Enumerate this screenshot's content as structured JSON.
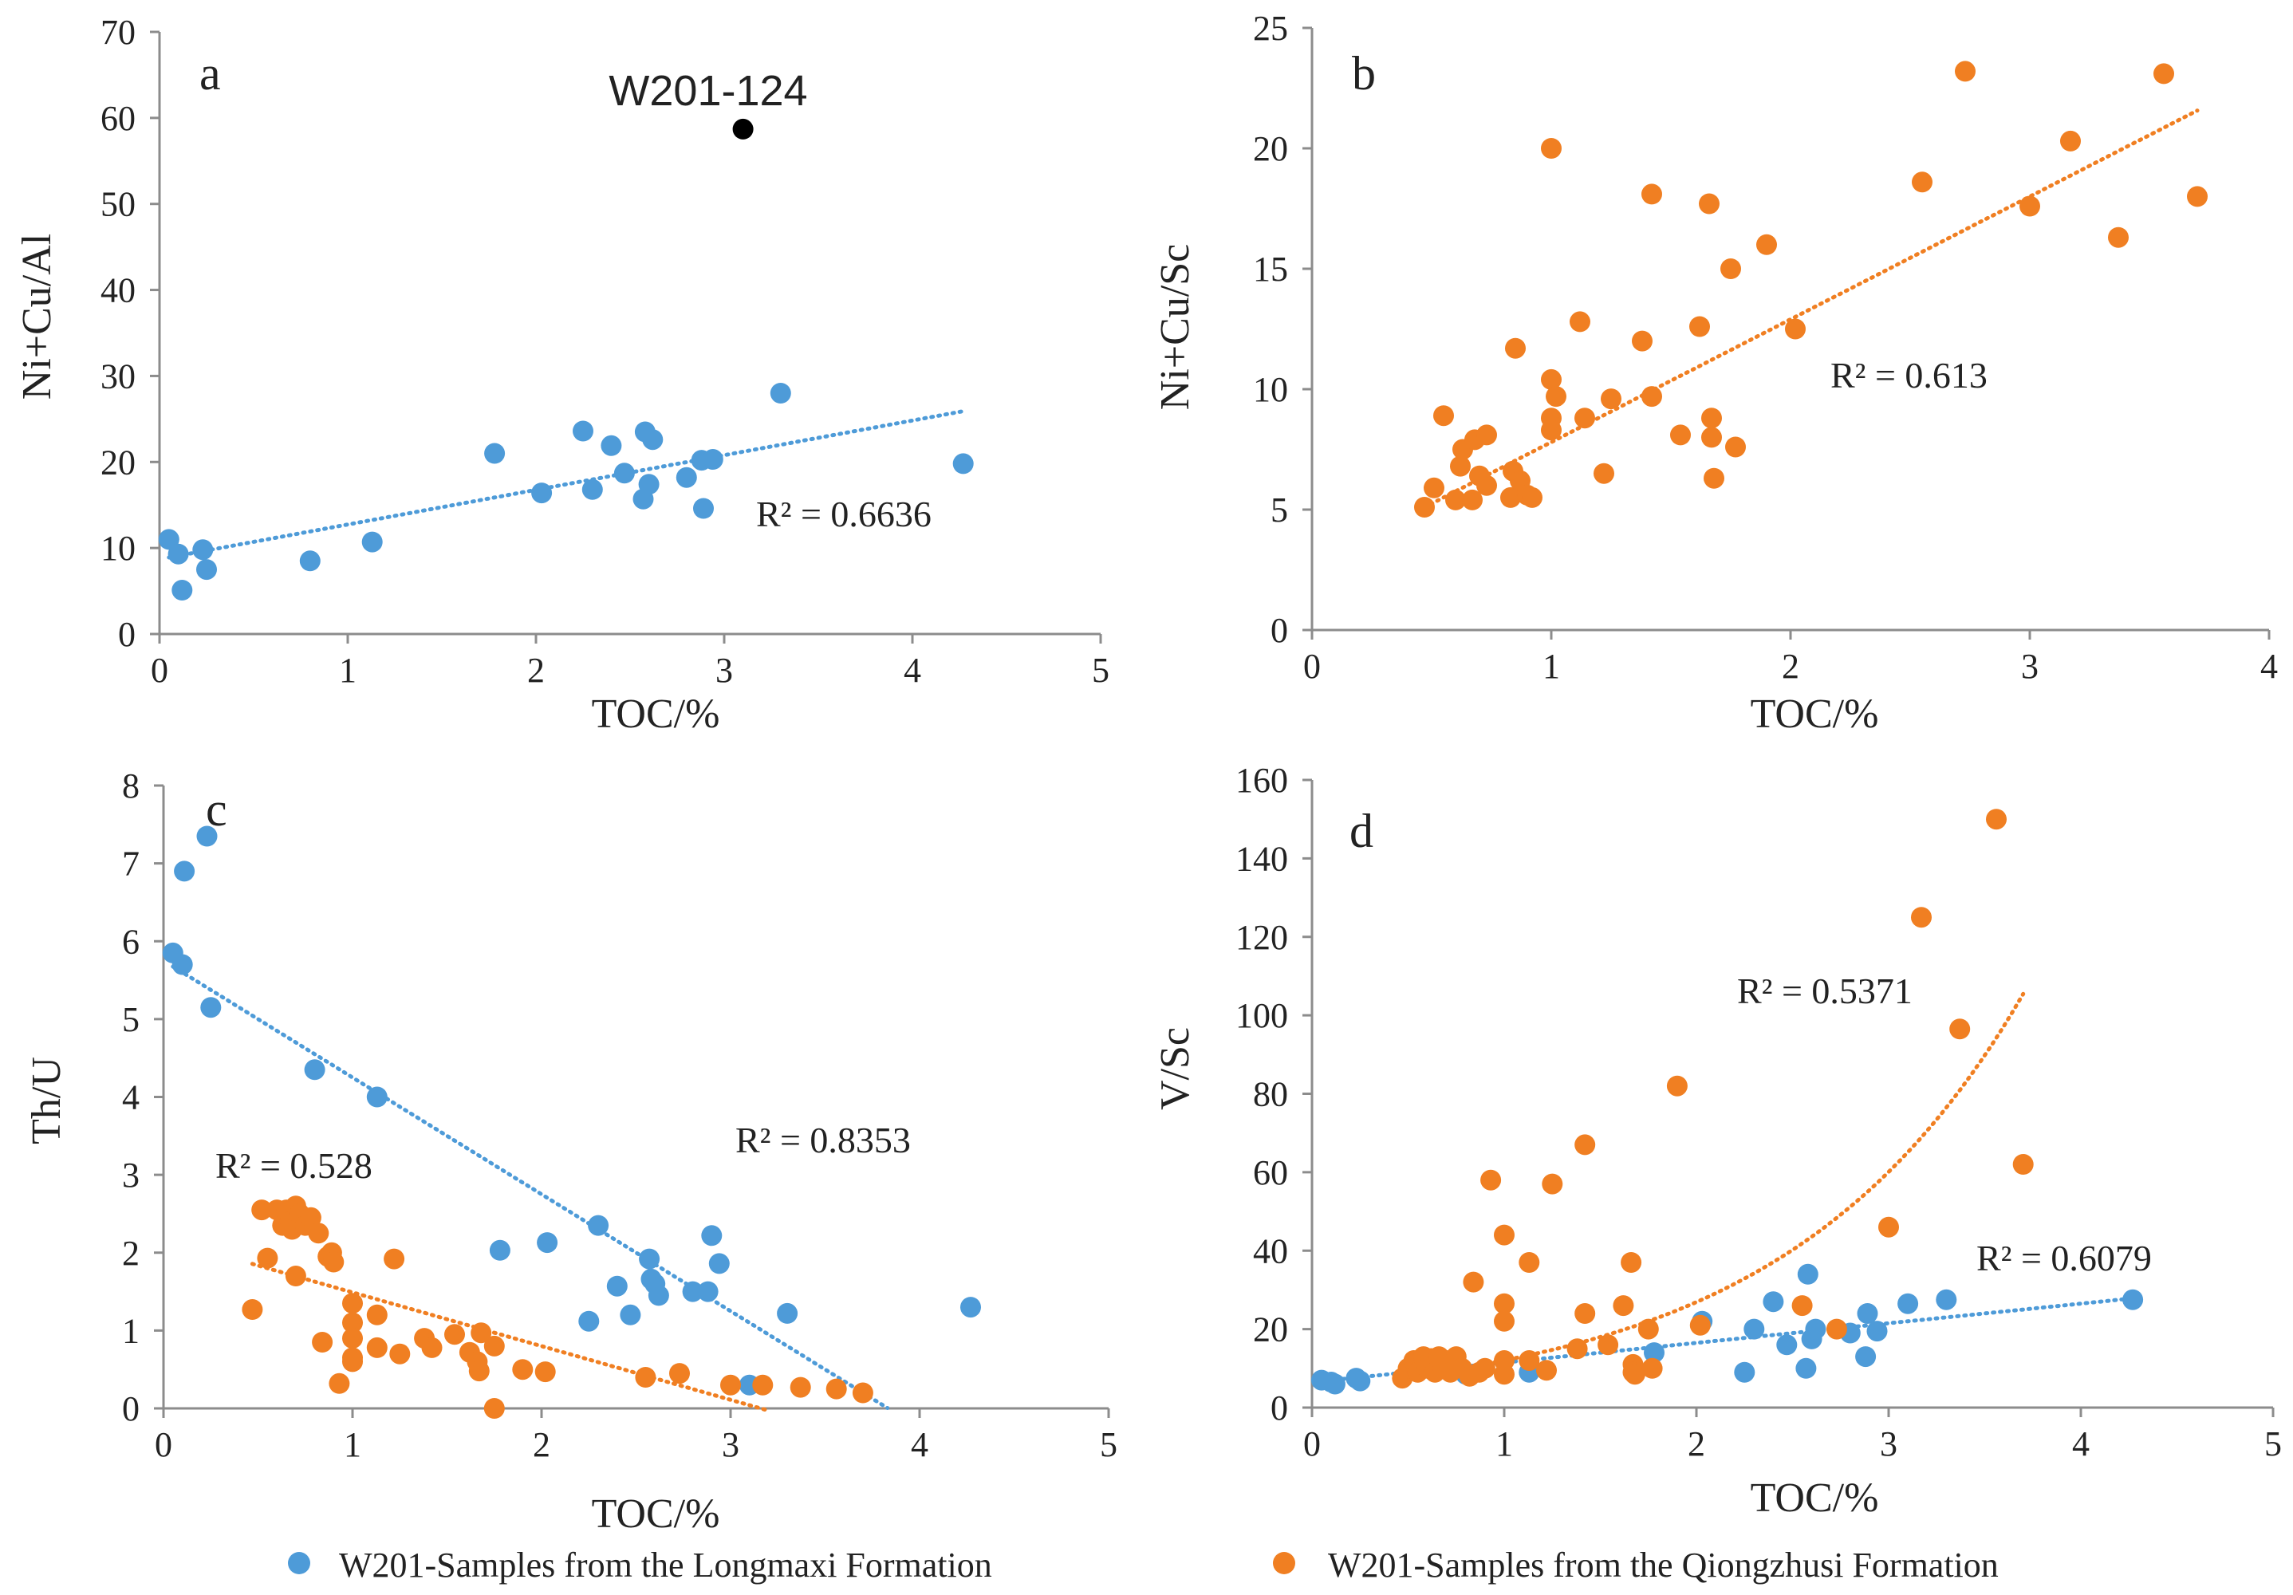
{
  "colors": {
    "longmaxi": "#4e9bd8",
    "qiongzhusi": "#f07f22",
    "highlight": "#000000",
    "axis": "#8c8c8c",
    "text": "#222222"
  },
  "legend": {
    "longmaxi": "W201-Samples from the Longmaxi Formation",
    "qiongzhusi": "W201-Samples from the Qiongzhusi Formation"
  },
  "chart_data": [
    {
      "panel": "a",
      "type": "scatter",
      "xlabel": "TOC/%",
      "ylabel": "Ni+Cu/Al",
      "xlim": [
        0,
        5
      ],
      "ylim": [
        0,
        70
      ],
      "xticks": [
        "0",
        "1",
        "2",
        "3",
        "4",
        "5"
      ],
      "yticks": [
        "0",
        "10",
        "20",
        "30",
        "40",
        "50",
        "60",
        "70"
      ],
      "series": [
        {
          "name": "W201-Samples from the Longmaxi Formation",
          "color": "#4e9bd8",
          "points": [
            [
              0.05,
              11
            ],
            [
              0.1,
              9.3
            ],
            [
              0.12,
              5.1
            ],
            [
              0.23,
              9.8
            ],
            [
              0.25,
              7.5
            ],
            [
              0.8,
              8.5
            ],
            [
              1.13,
              10.7
            ],
            [
              1.78,
              21
            ],
            [
              2.03,
              16.4
            ],
            [
              2.25,
              23.6
            ],
            [
              2.3,
              16.8
            ],
            [
              2.4,
              21.9
            ],
            [
              2.47,
              18.7
            ],
            [
              2.57,
              15.7
            ],
            [
              2.58,
              23.5
            ],
            [
              2.6,
              17.4
            ],
            [
              2.62,
              22.6
            ],
            [
              2.8,
              18.2
            ],
            [
              2.88,
              20.2
            ],
            [
              2.89,
              14.6
            ],
            [
              2.94,
              20.3
            ],
            [
              3.3,
              28
            ],
            [
              4.27,
              19.8
            ]
          ],
          "trend": {
            "kind": "linear",
            "x_range": [
              0.05,
              4.27
            ],
            "coef": [
              8.7,
              4.03
            ],
            "r2_label": "R² = 0.6636"
          }
        },
        {
          "name": "W201-124",
          "color": "#000000",
          "points": [
            [
              3.1,
              58.7
            ]
          ],
          "label": "W201-124"
        }
      ]
    },
    {
      "panel": "b",
      "type": "scatter",
      "xlabel": "TOC/%",
      "ylabel": "Ni+Cu/Sc",
      "xlim": [
        0,
        4
      ],
      "ylim": [
        0,
        25
      ],
      "xticks": [
        "0",
        "1",
        "2",
        "3",
        "4"
      ],
      "yticks": [
        "0",
        "5",
        "10",
        "15",
        "20",
        "25"
      ],
      "series": [
        {
          "name": "W201-Samples from the Qiongzhusi Formation",
          "color": "#f07f22",
          "points": [
            [
              0.47,
              5.1
            ],
            [
              0.51,
              5.9
            ],
            [
              0.55,
              8.9
            ],
            [
              0.6,
              5.4
            ],
            [
              0.62,
              6.8
            ],
            [
              0.63,
              7.5
            ],
            [
              0.67,
              5.4
            ],
            [
              0.68,
              7.9
            ],
            [
              0.7,
              6.4
            ],
            [
              0.73,
              6
            ],
            [
              0.73,
              8.1
            ],
            [
              0.83,
              5.5
            ],
            [
              0.84,
              6.6
            ],
            [
              0.85,
              11.7
            ],
            [
              0.87,
              6.2
            ],
            [
              0.9,
              5.6
            ],
            [
              0.92,
              5.5
            ],
            [
              1.0,
              20
            ],
            [
              1.0,
              10.4
            ],
            [
              1.0,
              8.8
            ],
            [
              1.0,
              8.3
            ],
            [
              1.02,
              9.7
            ],
            [
              1.12,
              12.8
            ],
            [
              1.14,
              8.8
            ],
            [
              1.22,
              6.5
            ],
            [
              1.25,
              9.6
            ],
            [
              1.38,
              12
            ],
            [
              1.42,
              18.1
            ],
            [
              1.42,
              9.7
            ],
            [
              1.54,
              8.1
            ],
            [
              1.62,
              12.6
            ],
            [
              1.66,
              17.7
            ],
            [
              1.67,
              8.8
            ],
            [
              1.67,
              8
            ],
            [
              1.68,
              6.3
            ],
            [
              1.75,
              15
            ],
            [
              1.77,
              7.6
            ],
            [
              1.9,
              16
            ],
            [
              2.02,
              12.5
            ],
            [
              2.55,
              18.6
            ],
            [
              2.73,
              23.2
            ],
            [
              3.0,
              17.6
            ],
            [
              3.17,
              20.3
            ],
            [
              3.37,
              16.3
            ],
            [
              3.56,
              23.1
            ],
            [
              3.7,
              18
            ]
          ],
          "trend": {
            "kind": "linear",
            "x_range": [
              0.47,
              3.7
            ],
            "coef": [
              2.7,
              5.1
            ],
            "r2_label": "R² = 0.613"
          }
        }
      ]
    },
    {
      "panel": "c",
      "type": "scatter",
      "xlabel": "TOC/%",
      "ylabel": "Th/U",
      "xlim": [
        0,
        5
      ],
      "ylim": [
        0,
        8
      ],
      "xticks": [
        "0",
        "1",
        "2",
        "3",
        "4",
        "5"
      ],
      "yticks": [
        "0",
        "1",
        "2",
        "3",
        "4",
        "5",
        "6",
        "7",
        "8"
      ],
      "series": [
        {
          "name": "W201-Samples from the Longmaxi Formation",
          "color": "#4e9bd8",
          "points": [
            [
              0.05,
              5.85
            ],
            [
              0.1,
              5.7
            ],
            [
              0.11,
              6.9
            ],
            [
              0.23,
              7.35
            ],
            [
              0.25,
              5.15
            ],
            [
              0.8,
              4.35
            ],
            [
              1.13,
              4.0
            ],
            [
              1.78,
              2.03
            ],
            [
              2.03,
              2.13
            ],
            [
              2.25,
              1.12
            ],
            [
              2.3,
              2.35
            ],
            [
              2.4,
              1.57
            ],
            [
              2.47,
              1.2
            ],
            [
              2.57,
              1.92
            ],
            [
              2.58,
              1.66
            ],
            [
              2.6,
              1.6
            ],
            [
              2.62,
              1.45
            ],
            [
              2.8,
              1.5
            ],
            [
              2.88,
              1.5
            ],
            [
              2.9,
              2.22
            ],
            [
              2.94,
              1.86
            ],
            [
              3.1,
              0.3
            ],
            [
              3.3,
              1.22
            ],
            [
              4.27,
              1.3
            ]
          ],
          "trend": {
            "kind": "linear",
            "x_range": [
              0.05,
              3.83
            ],
            "coef": [
              5.75,
              -1.5
            ],
            "r2_label": "R² = 0.8353"
          }
        },
        {
          "name": "W201-Samples from the Qiongzhusi Formation",
          "color": "#f07f22",
          "points": [
            [
              0.47,
              1.27
            ],
            [
              0.52,
              2.55
            ],
            [
              0.55,
              1.93
            ],
            [
              0.6,
              2.55
            ],
            [
              0.63,
              2.35
            ],
            [
              0.65,
              2.55
            ],
            [
              0.67,
              2.4
            ],
            [
              0.68,
              2.3
            ],
            [
              0.7,
              2.6
            ],
            [
              0.7,
              1.7
            ],
            [
              0.72,
              2.5
            ],
            [
              0.75,
              2.35
            ],
            [
              0.78,
              2.45
            ],
            [
              0.82,
              2.25
            ],
            [
              0.84,
              0.85
            ],
            [
              0.87,
              1.95
            ],
            [
              0.89,
              2.0
            ],
            [
              0.9,
              1.88
            ],
            [
              0.93,
              0.32
            ],
            [
              1.0,
              1.35
            ],
            [
              1.0,
              1.1
            ],
            [
              1.0,
              0.9
            ],
            [
              1.0,
              0.65
            ],
            [
              1.0,
              0.6
            ],
            [
              1.13,
              1.2
            ],
            [
              1.13,
              0.78
            ],
            [
              1.22,
              1.92
            ],
            [
              1.25,
              0.7
            ],
            [
              1.38,
              0.9
            ],
            [
              1.42,
              0.78
            ],
            [
              1.54,
              0.95
            ],
            [
              1.62,
              0.72
            ],
            [
              1.66,
              0.6
            ],
            [
              1.67,
              0.48
            ],
            [
              1.68,
              0.97
            ],
            [
              1.75,
              0.8
            ],
            [
              1.75,
              0.0
            ],
            [
              1.9,
              0.5
            ],
            [
              2.02,
              0.47
            ],
            [
              2.55,
              0.4
            ],
            [
              2.73,
              0.45
            ],
            [
              3.0,
              0.3
            ],
            [
              3.17,
              0.3
            ],
            [
              3.37,
              0.27
            ],
            [
              3.56,
              0.25
            ],
            [
              3.7,
              0.2
            ]
          ],
          "trend": {
            "kind": "linear",
            "x_range": [
              0.47,
              3.2
            ],
            "coef": [
              2.18,
              -0.69
            ],
            "r2_label": "R² = 0.528"
          }
        }
      ]
    },
    {
      "panel": "d",
      "type": "scatter",
      "xlabel": "TOC/%",
      "ylabel": "V/Sc",
      "xlim": [
        0,
        5
      ],
      "ylim": [
        0,
        160
      ],
      "xticks": [
        "0",
        "1",
        "2",
        "3",
        "4",
        "5"
      ],
      "yticks": [
        "0",
        "20",
        "40",
        "60",
        "80",
        "100",
        "120",
        "140",
        "160"
      ],
      "series": [
        {
          "name": "W201-Samples from the Longmaxi Formation",
          "color": "#4e9bd8",
          "points": [
            [
              0.05,
              7
            ],
            [
              0.1,
              6.5
            ],
            [
              0.12,
              6
            ],
            [
              0.23,
              7.5
            ],
            [
              0.25,
              6.8
            ],
            [
              0.8,
              8.5
            ],
            [
              1.13,
              9
            ],
            [
              1.78,
              14
            ],
            [
              2.03,
              22
            ],
            [
              2.25,
              9
            ],
            [
              2.3,
              20
            ],
            [
              2.4,
              27
            ],
            [
              2.47,
              16
            ],
            [
              2.57,
              10
            ],
            [
              2.58,
              34
            ],
            [
              2.6,
              17.5
            ],
            [
              2.62,
              20
            ],
            [
              2.8,
              19
            ],
            [
              2.88,
              13
            ],
            [
              2.89,
              24
            ],
            [
              2.94,
              19.5
            ],
            [
              3.1,
              26.5
            ],
            [
              3.3,
              27.5
            ],
            [
              4.27,
              27.5
            ]
          ],
          "trend": {
            "kind": "linear",
            "x_range": [
              0.05,
              4.27
            ],
            "coef": [
              6.5,
              5.0
            ],
            "r2_label": "R² = 0.6079"
          }
        },
        {
          "name": "W201-Samples from the Qiongzhusi Formation",
          "color": "#f07f22",
          "points": [
            [
              0.47,
              7.5
            ],
            [
              0.5,
              10
            ],
            [
              0.53,
              12
            ],
            [
              0.55,
              9
            ],
            [
              0.58,
              13
            ],
            [
              0.6,
              10
            ],
            [
              0.62,
              12.5
            ],
            [
              0.64,
              9
            ],
            [
              0.66,
              13
            ],
            [
              0.68,
              10
            ],
            [
              0.7,
              12
            ],
            [
              0.72,
              9
            ],
            [
              0.75,
              13
            ],
            [
              0.78,
              10
            ],
            [
              0.82,
              8
            ],
            [
              0.84,
              32
            ],
            [
              0.87,
              9
            ],
            [
              0.9,
              10
            ],
            [
              0.93,
              58
            ],
            [
              1.0,
              44
            ],
            [
              1.0,
              26.5
            ],
            [
              1.0,
              22
            ],
            [
              1.0,
              12
            ],
            [
              1.0,
              8.5
            ],
            [
              1.13,
              37
            ],
            [
              1.13,
              12
            ],
            [
              1.22,
              9.5
            ],
            [
              1.25,
              57
            ],
            [
              1.38,
              15
            ],
            [
              1.42,
              67
            ],
            [
              1.42,
              24
            ],
            [
              1.54,
              16
            ],
            [
              1.62,
              26
            ],
            [
              1.66,
              37
            ],
            [
              1.67,
              11
            ],
            [
              1.67,
              9
            ],
            [
              1.68,
              8.5
            ],
            [
              1.75,
              20
            ],
            [
              1.77,
              10
            ],
            [
              1.9,
              82
            ],
            [
              2.02,
              21
            ],
            [
              2.55,
              26
            ],
            [
              2.73,
              20
            ],
            [
              3.0,
              46
            ],
            [
              3.17,
              125
            ],
            [
              3.37,
              96.5
            ],
            [
              3.56,
              150
            ],
            [
              3.7,
              62
            ]
          ],
          "trend": {
            "kind": "exponential",
            "x_range": [
              0.47,
              3.7
            ],
            "coef": [
              5.39,
              0.8037
            ],
            "r2_label": "R² = 0.5371"
          }
        }
      ]
    }
  ]
}
